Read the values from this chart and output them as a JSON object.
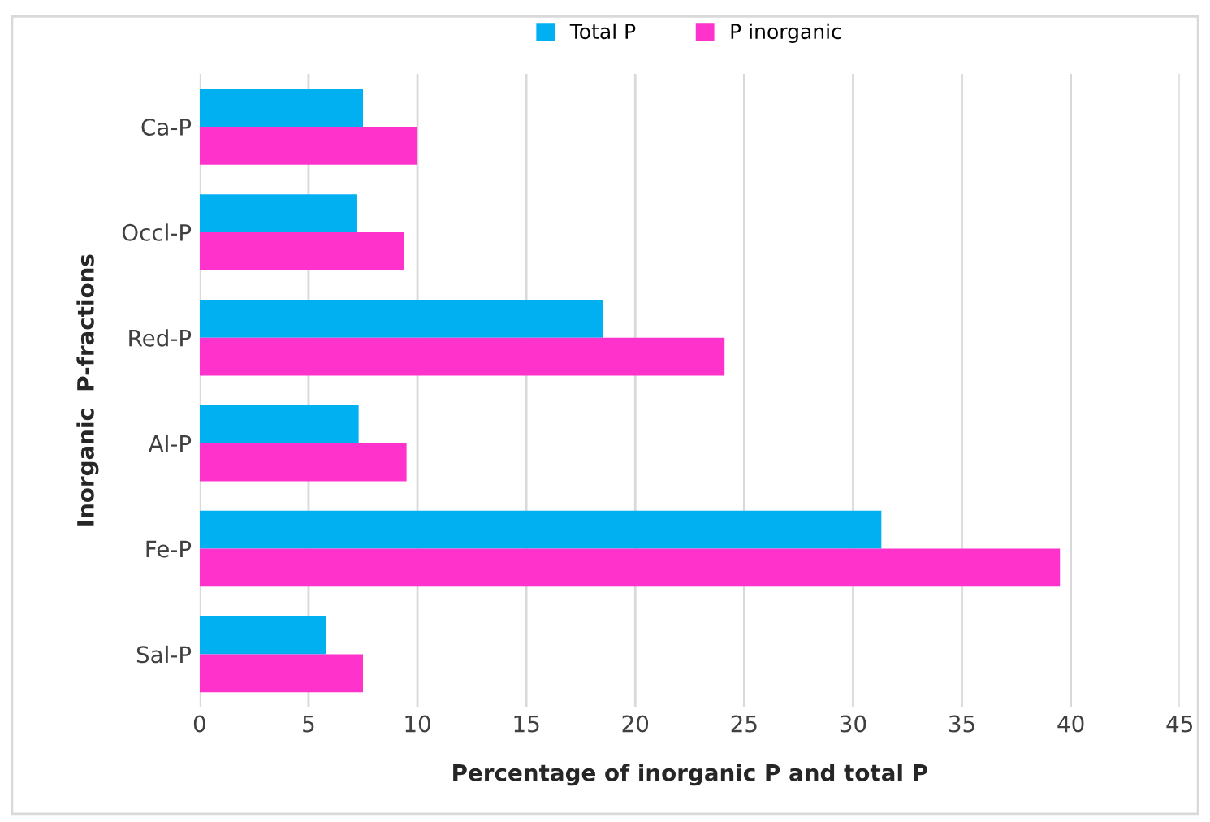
{
  "chart_data": {
    "type": "bar",
    "orientation": "horizontal",
    "xlabel": "Percentage of inorganic P and total P",
    "ylabel": "Inorganic  P-fractions",
    "categories": [
      "Ca-P",
      "Occl-P",
      "Red-P",
      "Al-P",
      "Fe-P",
      "Sal-P"
    ],
    "series": [
      {
        "name": "Total P",
        "color": "#00b0f0",
        "values": [
          7.5,
          7.2,
          18.5,
          7.3,
          31.3,
          5.8
        ]
      },
      {
        "name": "P inorganic",
        "color": "#ff33cc",
        "values": [
          10.0,
          9.4,
          24.1,
          9.5,
          39.5,
          7.5
        ]
      }
    ],
    "xlim": [
      0,
      45
    ],
    "xticks": [
      0,
      5,
      10,
      15,
      20,
      25,
      30,
      35,
      40,
      45
    ],
    "grid": "x",
    "legend": "top"
  }
}
